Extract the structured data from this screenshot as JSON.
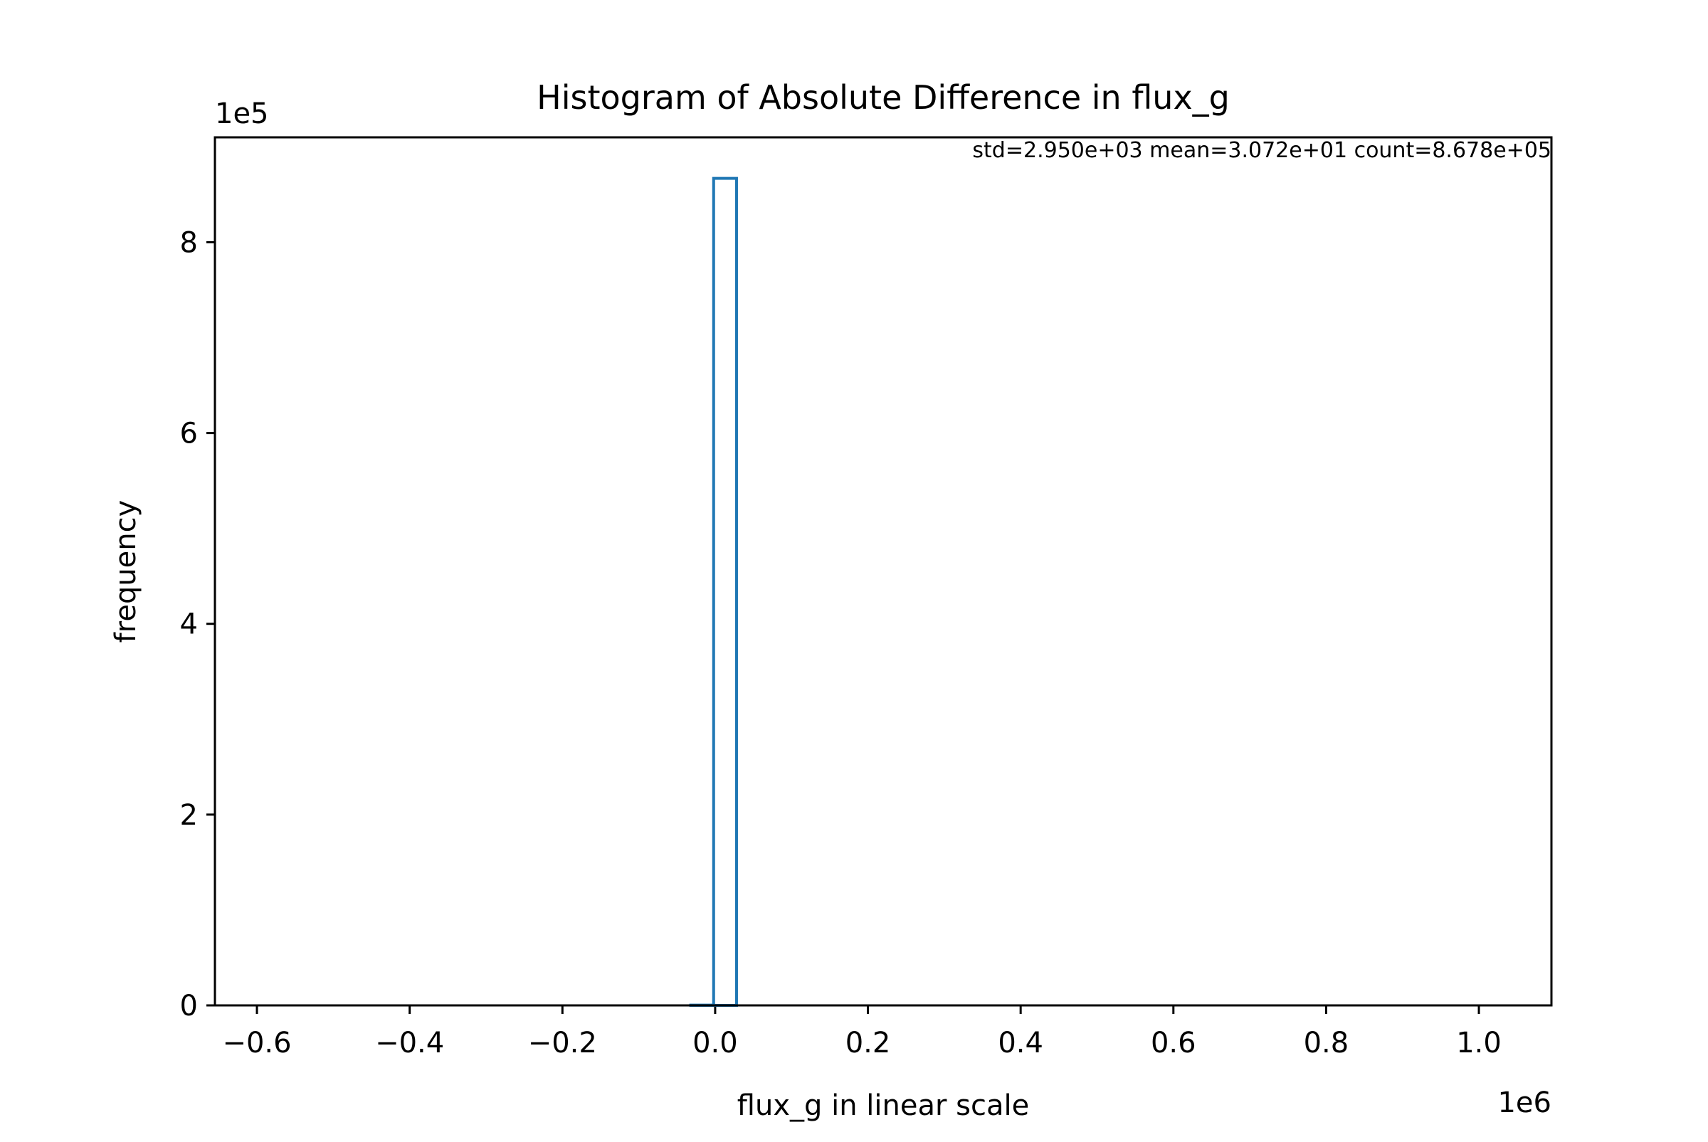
{
  "chart_data": {
    "type": "bar",
    "title": "Histogram of Absolute Difference in flux_g",
    "xlabel": "flux_g in linear scale",
    "ylabel": "frequency",
    "x_offset_label": "1e6",
    "y_offset_label": "1e5",
    "annotation": "std=2.950e+03 mean=3.072e+01 count=8.678e+05",
    "xlim": [
      -0.655,
      1.095
    ],
    "ylim": [
      0,
      9.1
    ],
    "x_ticks": [
      {
        "value": -0.6,
        "label": "−0.6"
      },
      {
        "value": -0.4,
        "label": "−0.4"
      },
      {
        "value": -0.2,
        "label": "−0.2"
      },
      {
        "value": 0.0,
        "label": "0.0"
      },
      {
        "value": 0.2,
        "label": "0.2"
      },
      {
        "value": 0.4,
        "label": "0.4"
      },
      {
        "value": 0.6,
        "label": "0.6"
      },
      {
        "value": 0.8,
        "label": "0.8"
      },
      {
        "value": 1.0,
        "label": "1.0"
      }
    ],
    "y_ticks": [
      {
        "value": 0,
        "label": "0"
      },
      {
        "value": 2,
        "label": "2"
      },
      {
        "value": 4,
        "label": "4"
      },
      {
        "value": 6,
        "label": "6"
      },
      {
        "value": 8,
        "label": "8"
      }
    ],
    "bins": [
      {
        "x0": -0.625,
        "x1": -0.032,
        "count": 0.0
      },
      {
        "x0": -0.032,
        "x1": -0.002,
        "count": 0.003
      },
      {
        "x0": -0.002,
        "x1": 0.028,
        "count": 8.67
      },
      {
        "x0": 0.028,
        "x1": 1.05,
        "count": 0.0
      }
    ],
    "colors": {
      "series": "#1f77b4"
    },
    "grid": false,
    "histtype": "step"
  }
}
